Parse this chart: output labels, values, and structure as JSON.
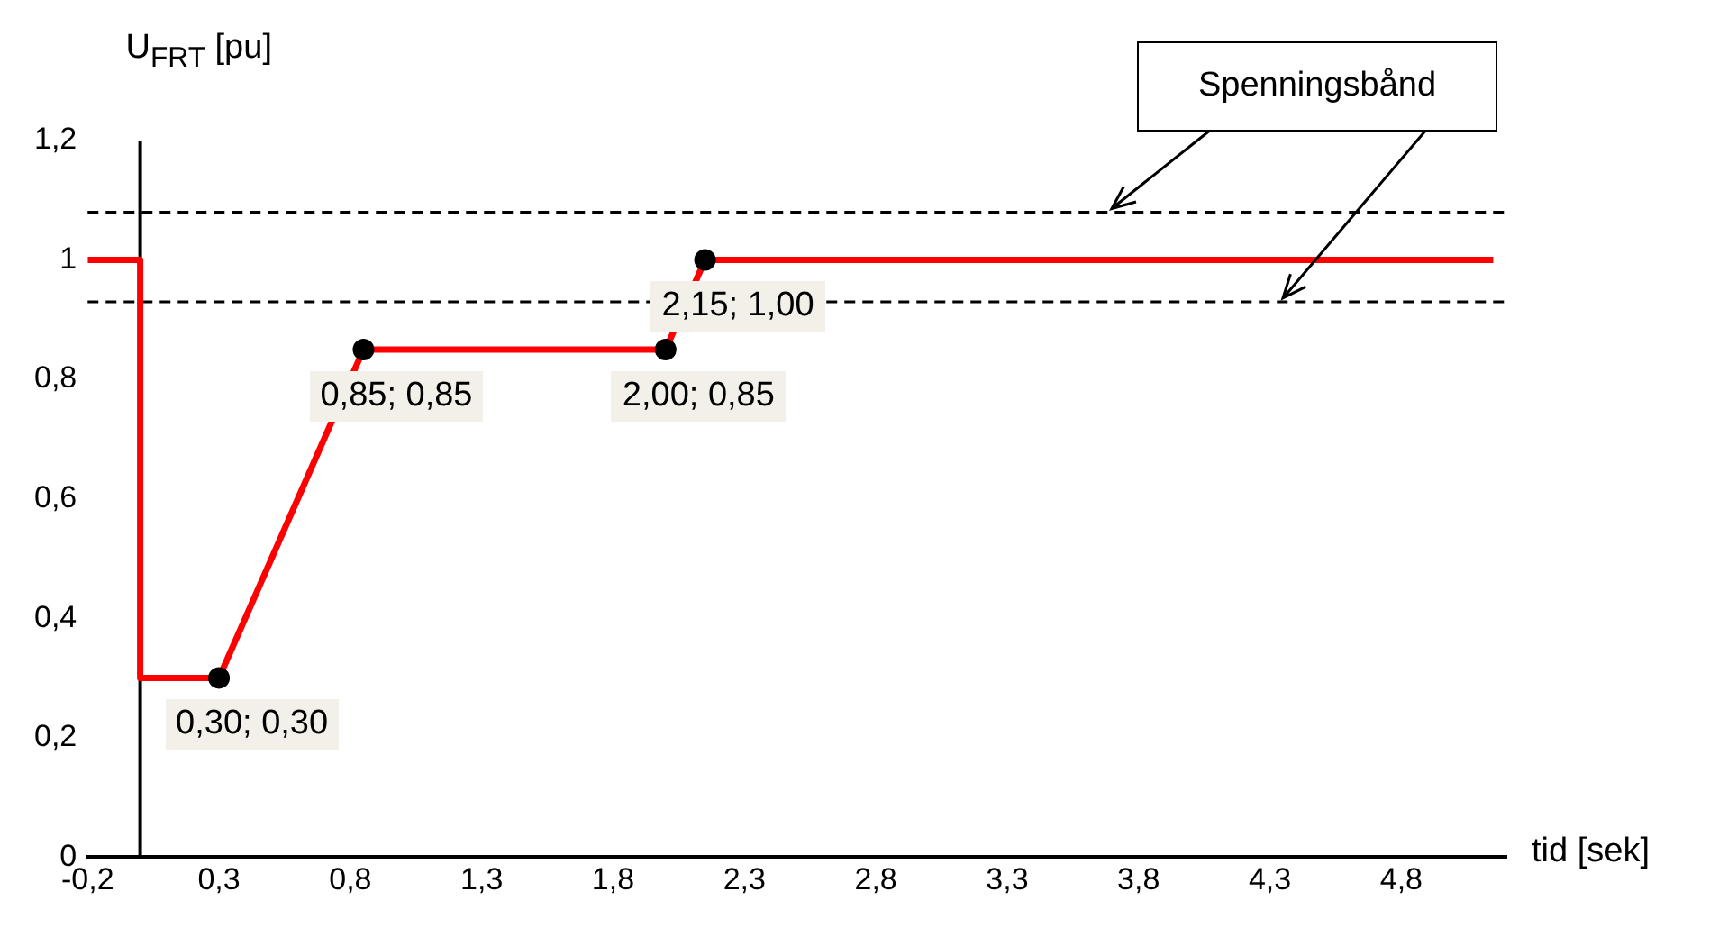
{
  "chart_data": {
    "type": "line",
    "ylabel": "U$_{FRT}$ [pu]",
    "xlabel": "tid [sek]",
    "xlim": [
      -0.2,
      5.2
    ],
    "ylim": [
      0,
      1.2
    ],
    "xticks": [
      {
        "value": -0.2,
        "label": "-0,2"
      },
      {
        "value": 0.3,
        "label": "0,3"
      },
      {
        "value": 0.8,
        "label": "0,8"
      },
      {
        "value": 1.3,
        "label": "1,3"
      },
      {
        "value": 1.8,
        "label": "1,8"
      },
      {
        "value": 2.3,
        "label": "2,3"
      },
      {
        "value": 2.8,
        "label": "2,8"
      },
      {
        "value": 3.3,
        "label": "3,3"
      },
      {
        "value": 3.8,
        "label": "3,8"
      },
      {
        "value": 4.3,
        "label": "4,3"
      },
      {
        "value": 4.8,
        "label": "4,8"
      }
    ],
    "yticks": [
      0,
      {
        "value": 0.2,
        "label": "0,2"
      },
      {
        "value": 0.4,
        "label": "0,4"
      },
      {
        "value": 0.6,
        "label": "0,6"
      },
      {
        "value": 0.8,
        "label": "0,8"
      },
      1,
      {
        "value": 1.2,
        "label": "1,2"
      }
    ],
    "grid": false,
    "legend": false,
    "series": [
      {
        "type": "line",
        "color": "#ff0000",
        "marker": "none",
        "x": [
          -0.2,
          0,
          0,
          0.3,
          0.85,
          2.0,
          2.15,
          5.15
        ],
        "values": [
          1,
          1,
          0.3,
          0.3,
          0.85,
          0.85,
          1,
          1
        ]
      },
      {
        "type": "scatter",
        "color": "#000000",
        "marker": "circle",
        "x": [
          0.3,
          0.85,
          2.0,
          2.15
        ],
        "values": [
          0.3,
          0.85,
          0.85,
          1.0
        ]
      }
    ],
    "ref_lines": [
      {
        "axis": "y",
        "value": 1.08,
        "color": "#000000",
        "line_style": "dashed"
      },
      {
        "axis": "y",
        "value": 0.93,
        "color": "#000000",
        "line_style": "dashed"
      }
    ],
    "annotations": [
      {
        "text": "0,30; 0,30",
        "x": 0.3,
        "y": 0.3
      },
      {
        "text": "0,85; 0,85",
        "x": 0.85,
        "y": 0.85
      },
      {
        "text": "2,00; 0,85",
        "x": 2.0,
        "y": 0.85
      },
      {
        "text": "2,15; 1,00",
        "x": 2.15,
        "y": 1.0
      },
      {
        "text": "Spenningsbånd",
        "x": 3.7,
        "y": 1.08
      }
    ]
  }
}
